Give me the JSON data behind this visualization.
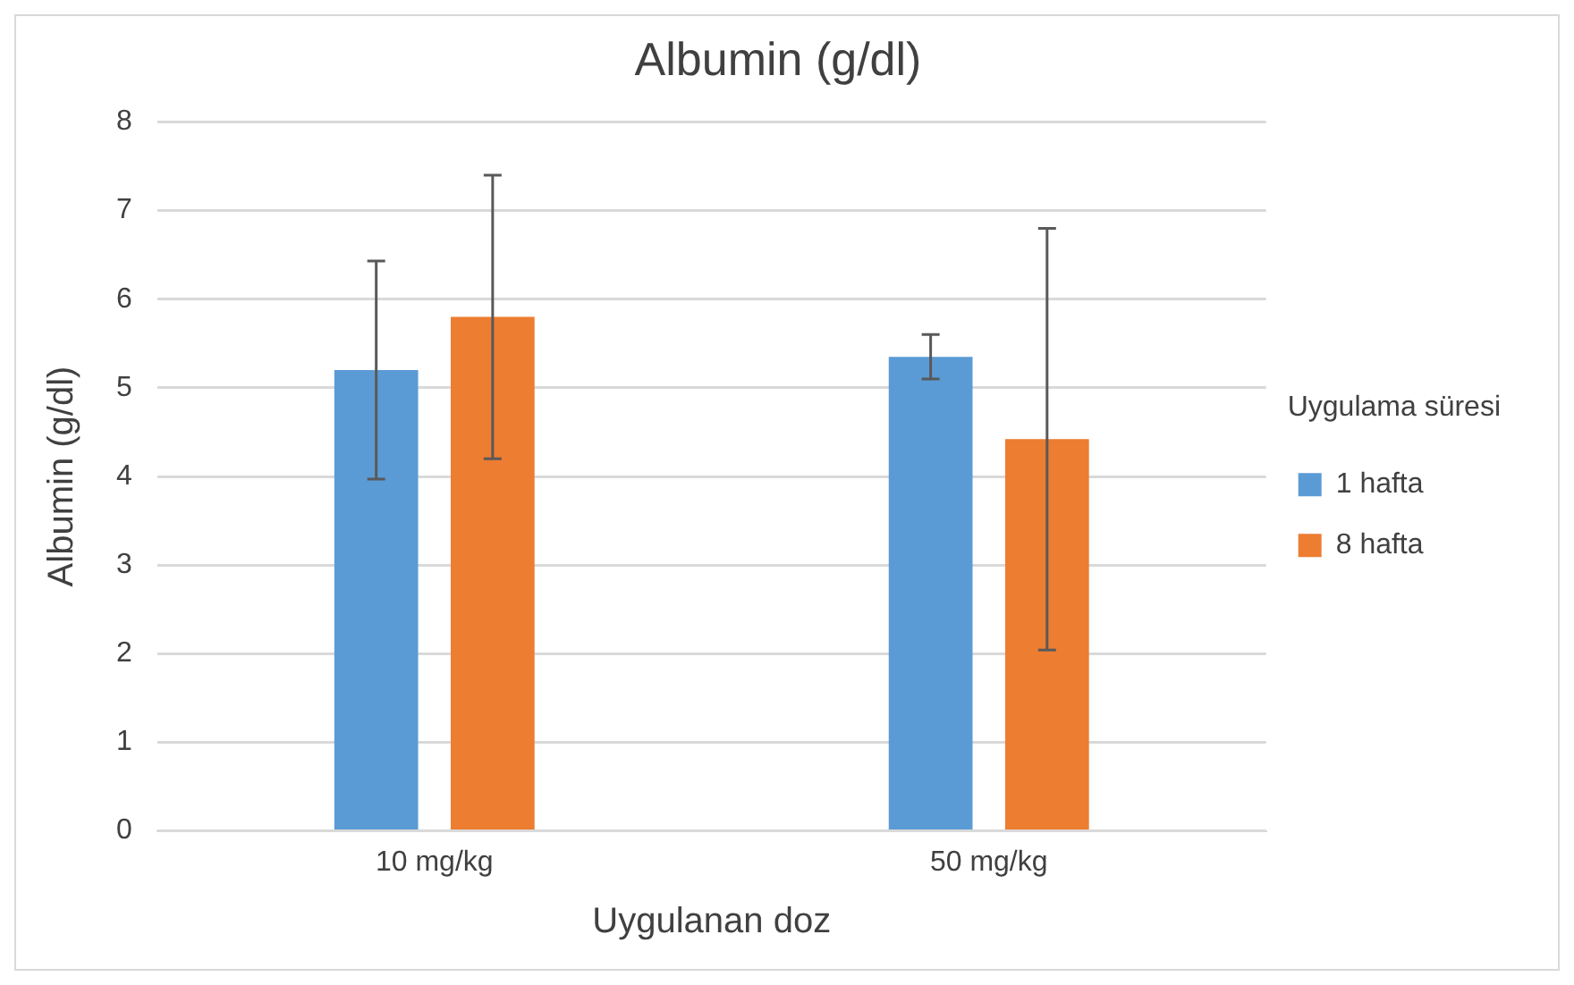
{
  "chart_data": {
    "type": "bar",
    "title": "Albumin (g/dl)",
    "xlabel": "Uygulanan doz",
    "ylabel": "Albumin (g/dl)",
    "legend_title": "Uygulama süresi",
    "categories": [
      "10 mg/kg",
      "50 mg/kg"
    ],
    "series": [
      {
        "name": "1 hafta",
        "color": "#5b9bd5",
        "values": [
          5.2,
          5.35
        ],
        "errors": [
          1.23,
          0.25
        ]
      },
      {
        "name": "8 hafta",
        "color": "#ed7d31",
        "values": [
          5.8,
          4.42
        ],
        "errors": [
          1.6,
          2.38
        ]
      }
    ],
    "ylim": [
      0,
      8
    ],
    "yticks": [
      0,
      1,
      2,
      3,
      4,
      5,
      6,
      7,
      8
    ],
    "grid": "y",
    "legend": "right"
  }
}
